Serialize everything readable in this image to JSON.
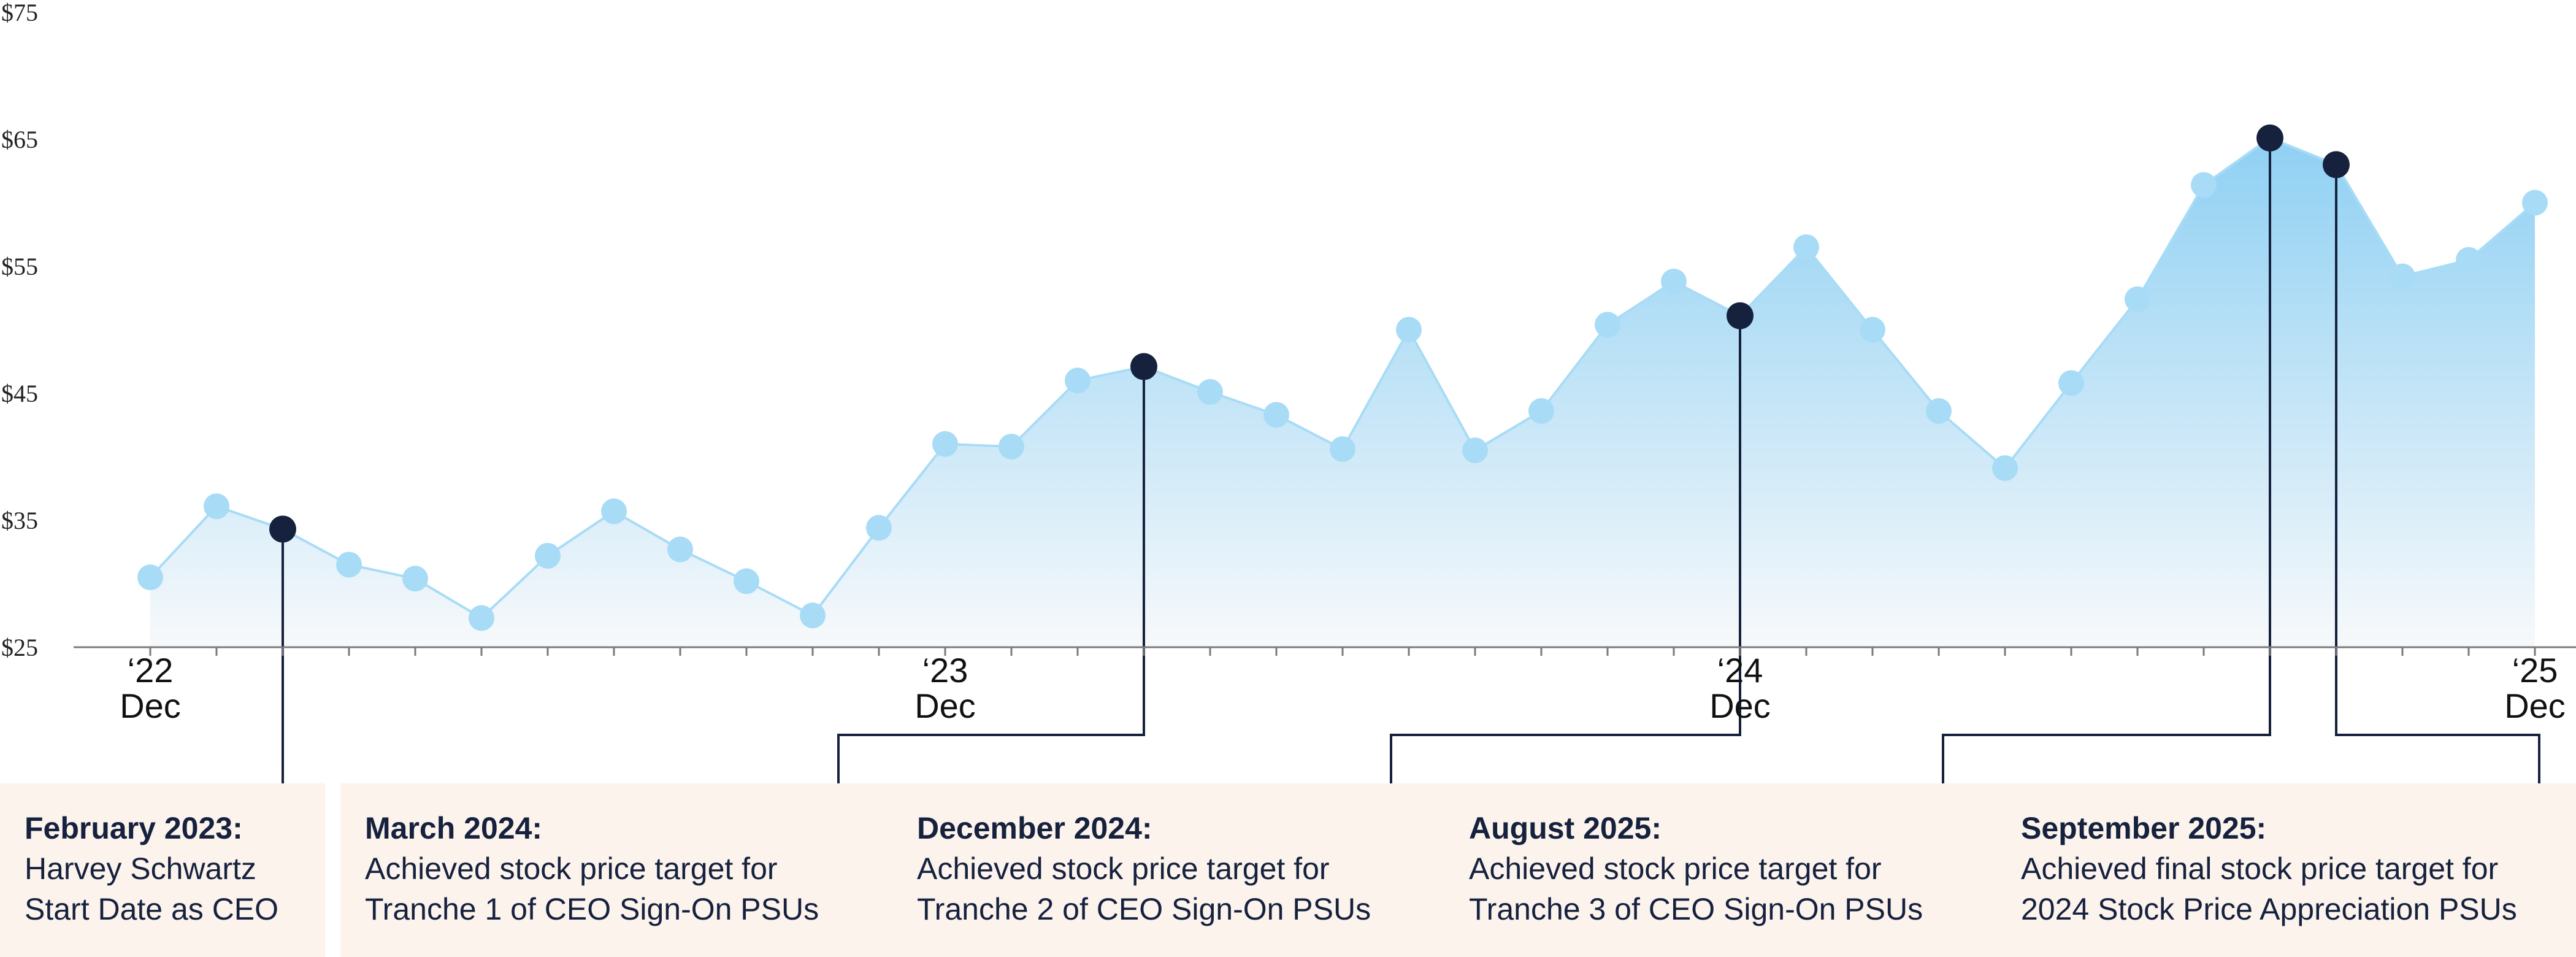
{
  "chart_data": {
    "type": "area",
    "y_ticks": [
      "$75",
      "$65",
      "$55",
      "$45",
      "$35",
      "$25"
    ],
    "ylim": [
      25,
      75
    ],
    "x_ticks": [
      {
        "year": "‘22",
        "month": "Dec"
      },
      {
        "year": "‘23",
        "month": "Dec"
      },
      {
        "year": "‘24",
        "month": "Dec"
      },
      {
        "year": "‘25",
        "month": "Dec"
      }
    ],
    "x_tick_indices": [
      0,
      12,
      24,
      36
    ],
    "values": [
      30.5,
      36.1,
      34.3,
      31.5,
      30.4,
      27.3,
      32.2,
      35.7,
      32.7,
      30.2,
      27.5,
      34.4,
      41.0,
      40.8,
      46.0,
      47.1,
      45.1,
      43.3,
      40.6,
      50.0,
      40.5,
      43.6,
      50.4,
      53.8,
      51.1,
      56.5,
      50.0,
      43.6,
      39.1,
      45.8,
      52.4,
      61.4,
      65.1,
      63.0,
      54.2,
      55.5,
      60.0
    ],
    "highlight_indices": [
      2,
      15,
      24,
      32,
      33
    ],
    "colors": {
      "area_top": "#8fd0f3",
      "area_bottom": "#f7f9fb",
      "line": "#a8dcf6",
      "marker": "#a8dcf6",
      "highlight_marker": "#16213e",
      "annotation_box": "#fbf3ec",
      "text": "#16213e"
    },
    "annotations": [
      {
        "date": "February 2023:",
        "text": [
          "Harvey Schwartz",
          "Start Date as CEO"
        ]
      },
      {
        "date": "March 2024:",
        "text": [
          "Achieved stock price target for",
          "Tranche 1 of CEO Sign-On PSUs"
        ]
      },
      {
        "date": "December 2024:",
        "text": [
          "Achieved stock price target for",
          "Tranche 2 of CEO Sign-On PSUs"
        ]
      },
      {
        "date": "August 2025:",
        "text": [
          "Achieved stock price target for",
          "Tranche 3 of CEO Sign-On PSUs"
        ]
      },
      {
        "date": "September 2025:",
        "text": [
          "Achieved final stock price target for",
          "2024 Stock Price Appreciation PSUs"
        ]
      }
    ]
  }
}
